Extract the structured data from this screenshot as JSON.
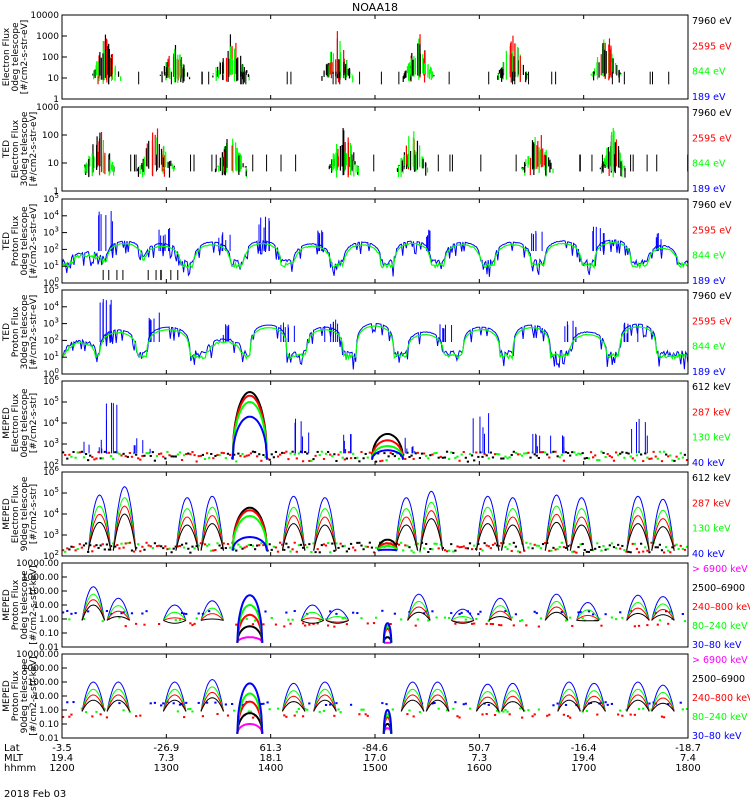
{
  "title": "NOAA18",
  "colors": {
    "blue": "#0000ff",
    "red": "#ff0000",
    "green": "#00ff00",
    "black": "#000000",
    "magenta": "#ff00ff"
  },
  "time_axis": {
    "row_labels": [
      "Lat",
      "MLT",
      "hhmm"
    ],
    "date": "2018 Feb 03",
    "ticks": [
      {
        "hhmm": "1200",
        "lat": "-3.5",
        "mlt": "19.4"
      },
      {
        "hhmm": "1300",
        "lat": "-26.9",
        "mlt": "7.3"
      },
      {
        "hhmm": "1400",
        "lat": "61.3",
        "mlt": "18.1"
      },
      {
        "hhmm": "1500",
        "lat": "-84.6",
        "mlt": "17.0"
      },
      {
        "hhmm": "1600",
        "lat": "50.7",
        "mlt": "7.3"
      },
      {
        "hhmm": "1700",
        "lat": "-16.4",
        "mlt": "19.4"
      },
      {
        "hhmm": "1800",
        "lat": "-18.7",
        "mlt": "7.4"
      }
    ]
  },
  "chart_data": [
    {
      "type": "line",
      "scale": "log",
      "ylabel": [
        "Electron Flux",
        "0deg telescope",
        "[#/cm2-s-str-eV]"
      ],
      "ylim": [
        1,
        10000
      ],
      "yticks": [
        "1",
        "10",
        "100",
        "1000",
        "10000"
      ],
      "legend_placement": "right",
      "series": [
        {
          "name": "7960 eV",
          "color": "black"
        },
        {
          "name": "2595 eV",
          "color": "red"
        },
        {
          "name": "844 eV",
          "color": "green"
        },
        {
          "name": "189 eV",
          "color": "blue"
        }
      ],
      "bursts": [
        {
          "t": 0.07,
          "w": 0.05,
          "peak": 1500,
          "base": 10
        },
        {
          "t": 0.18,
          "w": 0.05,
          "peak": 600,
          "base": 10
        },
        {
          "t": 0.27,
          "w": 0.06,
          "peak": 1800,
          "base": 12
        },
        {
          "t": 0.44,
          "w": 0.05,
          "peak": 1800,
          "base": 12
        },
        {
          "t": 0.57,
          "w": 0.05,
          "peak": 2000,
          "base": 12
        },
        {
          "t": 0.72,
          "w": 0.05,
          "peak": 1800,
          "base": 12
        },
        {
          "t": 0.87,
          "w": 0.05,
          "peak": 2200,
          "base": 12
        }
      ]
    },
    {
      "type": "line",
      "scale": "log",
      "ylabel": [
        "TED",
        "Electron Flux",
        "30deg telescope",
        "[#/cm2-s-str-eV]"
      ],
      "ylim": [
        1,
        1000
      ],
      "yticks": [
        "1",
        "10",
        "100",
        "1000"
      ],
      "legend_placement": "right",
      "series": [
        {
          "name": "7960 eV",
          "color": "black"
        },
        {
          "name": "2595 eV",
          "color": "red"
        },
        {
          "name": "844 eV",
          "color": "green"
        },
        {
          "name": "189 eV",
          "color": "blue"
        }
      ],
      "bursts": [
        {
          "t": 0.06,
          "w": 0.05,
          "peak": 250,
          "base": 6
        },
        {
          "t": 0.15,
          "w": 0.06,
          "peak": 300,
          "base": 6
        },
        {
          "t": 0.27,
          "w": 0.05,
          "peak": 200,
          "base": 6
        },
        {
          "t": 0.45,
          "w": 0.05,
          "peak": 300,
          "base": 6
        },
        {
          "t": 0.56,
          "w": 0.05,
          "peak": 250,
          "base": 6
        },
        {
          "t": 0.76,
          "w": 0.05,
          "peak": 300,
          "base": 6
        },
        {
          "t": 0.88,
          "w": 0.04,
          "peak": 200,
          "base": 6
        }
      ]
    },
    {
      "type": "line",
      "scale": "log",
      "ylabel": [
        "TED",
        "Proton Flux",
        "0deg telescope",
        "[#/cm2-s-str-eV]"
      ],
      "ylim": [
        1,
        100000
      ],
      "yticks": [
        "10^0",
        "10^1",
        "10^2",
        "10^3",
        "10^4",
        "10^5"
      ],
      "legend_placement": "right",
      "series": [
        {
          "name": "7960 eV",
          "color": "black"
        },
        {
          "name": "2595 eV",
          "color": "red"
        },
        {
          "name": "844 eV",
          "color": "green"
        },
        {
          "name": "189 eV",
          "color": "blue"
        }
      ],
      "humps": [
        {
          "t": 0.04,
          "w": 0.06,
          "peak": 50
        },
        {
          "t": 0.1,
          "w": 0.06,
          "peak": 300
        },
        {
          "t": 0.16,
          "w": 0.06,
          "peak": 200
        },
        {
          "t": 0.24,
          "w": 0.06,
          "peak": 250
        },
        {
          "t": 0.32,
          "w": 0.06,
          "peak": 300
        },
        {
          "t": 0.4,
          "w": 0.06,
          "peak": 200
        },
        {
          "t": 0.48,
          "w": 0.06,
          "peak": 250
        },
        {
          "t": 0.56,
          "w": 0.06,
          "peak": 300
        },
        {
          "t": 0.64,
          "w": 0.06,
          "peak": 250
        },
        {
          "t": 0.72,
          "w": 0.06,
          "peak": 250
        },
        {
          "t": 0.8,
          "w": 0.06,
          "peak": 300
        },
        {
          "t": 0.88,
          "w": 0.06,
          "peak": 350
        },
        {
          "t": 0.96,
          "w": 0.05,
          "peak": 150
        }
      ],
      "spikes": [
        {
          "t": 0.07,
          "peak": 20000
        },
        {
          "t": 0.16,
          "peak": 2000
        },
        {
          "t": 0.26,
          "peak": 1500
        },
        {
          "t": 0.32,
          "peak": 10000
        },
        {
          "t": 0.42,
          "peak": 1500
        },
        {
          "t": 0.58,
          "peak": 2000
        },
        {
          "t": 0.76,
          "peak": 1500
        },
        {
          "t": 0.86,
          "peak": 2500
        },
        {
          "t": 0.96,
          "peak": 1000
        }
      ]
    },
    {
      "type": "line",
      "scale": "log",
      "ylabel": [
        "TED",
        "Proton Flux",
        "30deg telescope",
        "[#/cm2-s-str-eV]"
      ],
      "ylim": [
        1,
        100000
      ],
      "yticks": [
        "10^0",
        "10^1",
        "10^2",
        "10^3",
        "10^4",
        "10^5"
      ],
      "legend_placement": "right",
      "series": [
        {
          "name": "7960 eV",
          "color": "black"
        },
        {
          "name": "2595 eV",
          "color": "red"
        },
        {
          "name": "844 eV",
          "color": "green"
        },
        {
          "name": "189 eV",
          "color": "blue"
        }
      ],
      "humps": [
        {
          "t": 0.03,
          "w": 0.05,
          "peak": 80
        },
        {
          "t": 0.09,
          "w": 0.06,
          "peak": 400
        },
        {
          "t": 0.17,
          "w": 0.07,
          "peak": 600
        },
        {
          "t": 0.26,
          "w": 0.06,
          "peak": 100
        },
        {
          "t": 0.33,
          "w": 0.06,
          "peak": 800
        },
        {
          "t": 0.42,
          "w": 0.06,
          "peak": 600
        },
        {
          "t": 0.5,
          "w": 0.06,
          "peak": 1000
        },
        {
          "t": 0.58,
          "w": 0.06,
          "peak": 300
        },
        {
          "t": 0.67,
          "w": 0.06,
          "peak": 600
        },
        {
          "t": 0.75,
          "w": 0.06,
          "peak": 800
        },
        {
          "t": 0.84,
          "w": 0.06,
          "peak": 300
        },
        {
          "t": 0.92,
          "w": 0.06,
          "peak": 900
        }
      ],
      "spikes": [
        {
          "t": 0.07,
          "peak": 30000
        },
        {
          "t": 0.15,
          "peak": 5000
        },
        {
          "t": 0.27,
          "peak": 1000
        },
        {
          "t": 0.36,
          "peak": 1500
        },
        {
          "t": 0.43,
          "peak": 2000
        },
        {
          "t": 0.61,
          "peak": 1000
        },
        {
          "t": 0.81,
          "peak": 1500
        },
        {
          "t": 0.91,
          "peak": 1200
        }
      ]
    },
    {
      "type": "line",
      "scale": "log",
      "ylabel": [
        "MEPED",
        "Electron Flux",
        "0deg telescope",
        "[#/cm2-s-str]"
      ],
      "ylim": [
        100,
        1000000
      ],
      "yticks": [
        "10^2",
        "10^3",
        "10^4",
        "10^5",
        "10^6"
      ],
      "legend_placement": "right",
      "series": [
        {
          "name": "612 keV",
          "color": "black"
        },
        {
          "name": "287 keV",
          "color": "red"
        },
        {
          "name": "130 keV",
          "color": "green"
        },
        {
          "name": "40 keV",
          "color": "blue"
        }
      ],
      "domes": [
        {
          "t": 0.3,
          "w": 0.055,
          "peaks": [
            300000,
            200000,
            100000,
            20000
          ]
        },
        {
          "t": 0.52,
          "w": 0.05,
          "peaks": [
            3000,
            1500,
            800,
            500
          ]
        }
      ],
      "spikes": [
        {
          "t": 0.05,
          "peak": 2000
        },
        {
          "t": 0.08,
          "peak": 100000
        },
        {
          "t": 0.13,
          "peak": 2000
        },
        {
          "t": 0.38,
          "peak": 20000
        },
        {
          "t": 0.45,
          "peak": 3000
        },
        {
          "t": 0.56,
          "peak": 3000
        },
        {
          "t": 0.67,
          "peak": 30000
        },
        {
          "t": 0.75,
          "peak": 4000
        },
        {
          "t": 0.79,
          "peak": 5000
        },
        {
          "t": 0.92,
          "peak": 20000
        }
      ]
    },
    {
      "type": "line",
      "scale": "log",
      "ylabel": [
        "MEPED",
        "Electron Flux",
        "90deg telescope",
        "[#/cm2-s-str]"
      ],
      "ylim": [
        100,
        1000000
      ],
      "yticks": [
        "10^2",
        "10^3",
        "10^4",
        "10^5",
        "10^6"
      ],
      "legend_placement": "right",
      "series": [
        {
          "name": "612 keV",
          "color": "black"
        },
        {
          "name": "287 keV",
          "color": "red"
        },
        {
          "name": "130 keV",
          "color": "green"
        },
        {
          "name": "40 keV",
          "color": "blue"
        }
      ],
      "domes": [
        {
          "t": 0.3,
          "w": 0.055,
          "peaks": [
            20000,
            15000,
            8000,
            800
          ]
        },
        {
          "t": 0.52,
          "w": 0.03,
          "peaks": [
            600,
            400,
            300,
            200
          ]
        }
      ],
      "peaks": [
        {
          "t": 0.06,
          "peak": 80000
        },
        {
          "t": 0.1,
          "peak": 200000
        },
        {
          "t": 0.2,
          "peak": 60000
        },
        {
          "t": 0.24,
          "peak": 70000
        },
        {
          "t": 0.37,
          "peak": 70000
        },
        {
          "t": 0.42,
          "peak": 60000
        },
        {
          "t": 0.55,
          "peak": 60000
        },
        {
          "t": 0.59,
          "peak": 120000
        },
        {
          "t": 0.68,
          "peak": 70000
        },
        {
          "t": 0.72,
          "peak": 60000
        },
        {
          "t": 0.79,
          "peak": 80000
        },
        {
          "t": 0.83,
          "peak": 60000
        },
        {
          "t": 0.92,
          "peak": 70000
        },
        {
          "t": 0.96,
          "peak": 50000
        }
      ]
    },
    {
      "type": "line",
      "scale": "log",
      "ylabel": [
        "MEPED",
        "Proton Flux",
        "0deg telescope",
        "[#/cm2-s-str-keV]"
      ],
      "ylim": [
        0.01,
        10000
      ],
      "yticks": [
        "0.01",
        "0.10",
        "1.00",
        "10.00",
        "100.00",
        "1000.00",
        "10000.00"
      ],
      "legend_placement": "right",
      "series": [
        {
          "name": "> 6900 keV",
          "color": "magenta"
        },
        {
          "name": "2500–6900",
          "color": "black"
        },
        {
          "name": "240–800 keV",
          "color": "red"
        },
        {
          "name": "80–240 keV",
          "color": "green"
        },
        {
          "name": "30–80 keV",
          "color": "blue"
        }
      ],
      "domes": [
        {
          "t": 0.3,
          "w": 0.04,
          "peaks": [
            0.05,
            0.3,
            2,
            10,
            50
          ]
        },
        {
          "t": 0.52,
          "w": 0.012,
          "peaks": [
            0.02,
            0.05,
            0.2,
            0.3,
            0.5
          ]
        }
      ],
      "peaks": [
        {
          "t": 0.05,
          "peak": 200
        },
        {
          "t": 0.09,
          "peak": 30
        },
        {
          "t": 0.18,
          "peak": 10
        },
        {
          "t": 0.24,
          "peak": 20
        },
        {
          "t": 0.4,
          "peak": 10
        },
        {
          "t": 0.44,
          "peak": 5
        },
        {
          "t": 0.57,
          "peak": 60
        },
        {
          "t": 0.64,
          "peak": 5
        },
        {
          "t": 0.7,
          "peak": 30
        },
        {
          "t": 0.79,
          "peak": 60
        },
        {
          "t": 0.84,
          "peak": 15
        },
        {
          "t": 0.92,
          "peak": 50
        },
        {
          "t": 0.96,
          "peak": 40
        }
      ]
    },
    {
      "type": "line",
      "scale": "log",
      "ylabel": [
        "MEPED",
        "Proton Flux",
        "90deg telescope",
        "[#/cm2-s-str-keV]"
      ],
      "ylim": [
        0.01,
        10000
      ],
      "yticks": [
        "0.01",
        "0.10",
        "1.00",
        "10.00",
        "100.00",
        "1000.00",
        "10000.00"
      ],
      "legend_placement": "right",
      "series": [
        {
          "name": "> 6900 keV",
          "color": "magenta"
        },
        {
          "name": "2500–6900",
          "color": "black"
        },
        {
          "name": "240–800 keV",
          "color": "red"
        },
        {
          "name": "80–240 keV",
          "color": "green"
        },
        {
          "name": "30–80 keV",
          "color": "blue"
        }
      ],
      "domes": [
        {
          "t": 0.3,
          "w": 0.04,
          "peaks": [
            0.1,
            0.6,
            4,
            15,
            80
          ]
        },
        {
          "t": 0.52,
          "w": 0.012,
          "peaks": [
            0.05,
            0.1,
            0.3,
            0.5,
            1
          ]
        }
      ],
      "peaks": [
        {
          "t": 0.05,
          "peak": 100
        },
        {
          "t": 0.09,
          "peak": 100
        },
        {
          "t": 0.18,
          "peak": 100
        },
        {
          "t": 0.24,
          "peak": 150
        },
        {
          "t": 0.37,
          "peak": 80
        },
        {
          "t": 0.42,
          "peak": 100
        },
        {
          "t": 0.56,
          "peak": 100
        },
        {
          "t": 0.6,
          "peak": 100
        },
        {
          "t": 0.68,
          "peak": 70
        },
        {
          "t": 0.72,
          "peak": 80
        },
        {
          "t": 0.81,
          "peak": 100
        },
        {
          "t": 0.85,
          "peak": 80
        },
        {
          "t": 0.92,
          "peak": 100
        },
        {
          "t": 0.96,
          "peak": 60
        }
      ]
    }
  ]
}
